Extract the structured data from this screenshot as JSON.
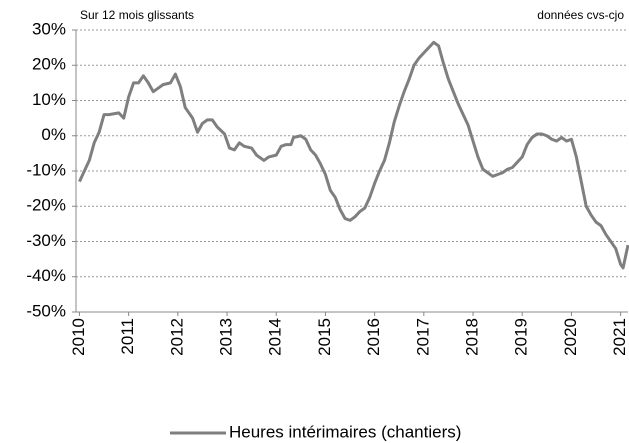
{
  "chart_data": {
    "type": "line",
    "header_left": "Sur 12 mois glissants",
    "header_right": "données cvs-cjo",
    "x": [
      2010.0,
      2010.1,
      2010.2,
      2010.3,
      2010.4,
      2010.5,
      2010.6,
      2010.8,
      2010.9,
      2011.0,
      2011.1,
      2011.2,
      2011.3,
      2011.4,
      2011.5,
      2011.6,
      2011.7,
      2011.85,
      2011.95,
      2012.05,
      2012.15,
      2012.3,
      2012.4,
      2012.5,
      2012.6,
      2012.7,
      2012.8,
      2012.95,
      2013.05,
      2013.15,
      2013.25,
      2013.35,
      2013.5,
      2013.6,
      2013.75,
      2013.85,
      2014.0,
      2014.1,
      2014.2,
      2014.3,
      2014.35,
      2014.5,
      2014.6,
      2014.7,
      2014.8,
      2014.9,
      2015.0,
      2015.1,
      2015.2,
      2015.3,
      2015.4,
      2015.5,
      2015.6,
      2015.7,
      2015.8,
      2015.9,
      2016.0,
      2016.1,
      2016.2,
      2016.3,
      2016.4,
      2016.5,
      2016.6,
      2016.7,
      2016.8,
      2016.9,
      2017.0,
      2017.1,
      2017.2,
      2017.3,
      2017.4,
      2017.5,
      2017.6,
      2017.7,
      2017.8,
      2017.9,
      2018.0,
      2018.1,
      2018.2,
      2018.3,
      2018.4,
      2018.5,
      2018.6,
      2018.7,
      2018.8,
      2018.9,
      2019.0,
      2019.1,
      2019.2,
      2019.3,
      2019.4,
      2019.5,
      2019.6,
      2019.7,
      2019.8,
      2019.9,
      2020.0,
      2020.1,
      2020.2,
      2020.3,
      2020.4,
      2020.5,
      2020.6,
      2020.7,
      2020.8,
      2020.9,
      2021.0,
      2021.05,
      2021.15
    ],
    "series": [
      {
        "name": "Heures intérimaires (chantiers)",
        "color": "#7f7f7f",
        "values": [
          -13,
          -10,
          -7,
          -2,
          1,
          6,
          6,
          6.5,
          5,
          11,
          15,
          15,
          17,
          15,
          12.5,
          13.5,
          14.5,
          15,
          17.5,
          14,
          8,
          5,
          1,
          3.5,
          4.5,
          4.5,
          2.5,
          0.5,
          -3.5,
          -4,
          -2,
          -3,
          -3.5,
          -5.5,
          -7,
          -6,
          -5.5,
          -3,
          -2.5,
          -2.5,
          -0.5,
          0,
          -1,
          -4,
          -5.5,
          -8,
          -11,
          -15.5,
          -17.5,
          -21,
          -23.5,
          -24,
          -23,
          -21.5,
          -20.5,
          -17.5,
          -13.5,
          -10,
          -7,
          -2,
          4,
          8.5,
          12.5,
          16,
          20,
          22,
          23.5,
          25,
          26.5,
          25.5,
          20.5,
          16,
          12.5,
          9,
          6,
          3,
          -1.5,
          -6,
          -9.5,
          -10.5,
          -11.5,
          -11,
          -10.5,
          -9.5,
          -9,
          -7.5,
          -6,
          -2.5,
          -0.5,
          0.5,
          0.5,
          0,
          -1,
          -1.5,
          -0.5,
          -1.5,
          -1,
          -6,
          -13,
          -20,
          -22.5,
          -24.5,
          -25.5,
          -28,
          -30,
          -32,
          -36.5,
          -37.5,
          -31
        ]
      }
    ],
    "xlim": [
      2009.93,
      2021.15
    ],
    "xticks": [
      2010,
      2011,
      2012,
      2013,
      2014,
      2015,
      2016,
      2017,
      2018,
      2019,
      2020,
      2021
    ],
    "ylim": [
      -50,
      30
    ],
    "yticks": [
      {
        "value": -50,
        "label": "-50%"
      },
      {
        "value": -40,
        "label": "-40%"
      },
      {
        "value": -30,
        "label": "-30%"
      },
      {
        "value": -20,
        "label": "-20%"
      },
      {
        "value": -10,
        "label": "-10%"
      },
      {
        "value": 0,
        "label": "0%"
      },
      {
        "value": 10,
        "label": "10%"
      },
      {
        "value": 20,
        "label": "20%"
      },
      {
        "value": 30,
        "label": "30%"
      }
    ],
    "grid": true
  }
}
